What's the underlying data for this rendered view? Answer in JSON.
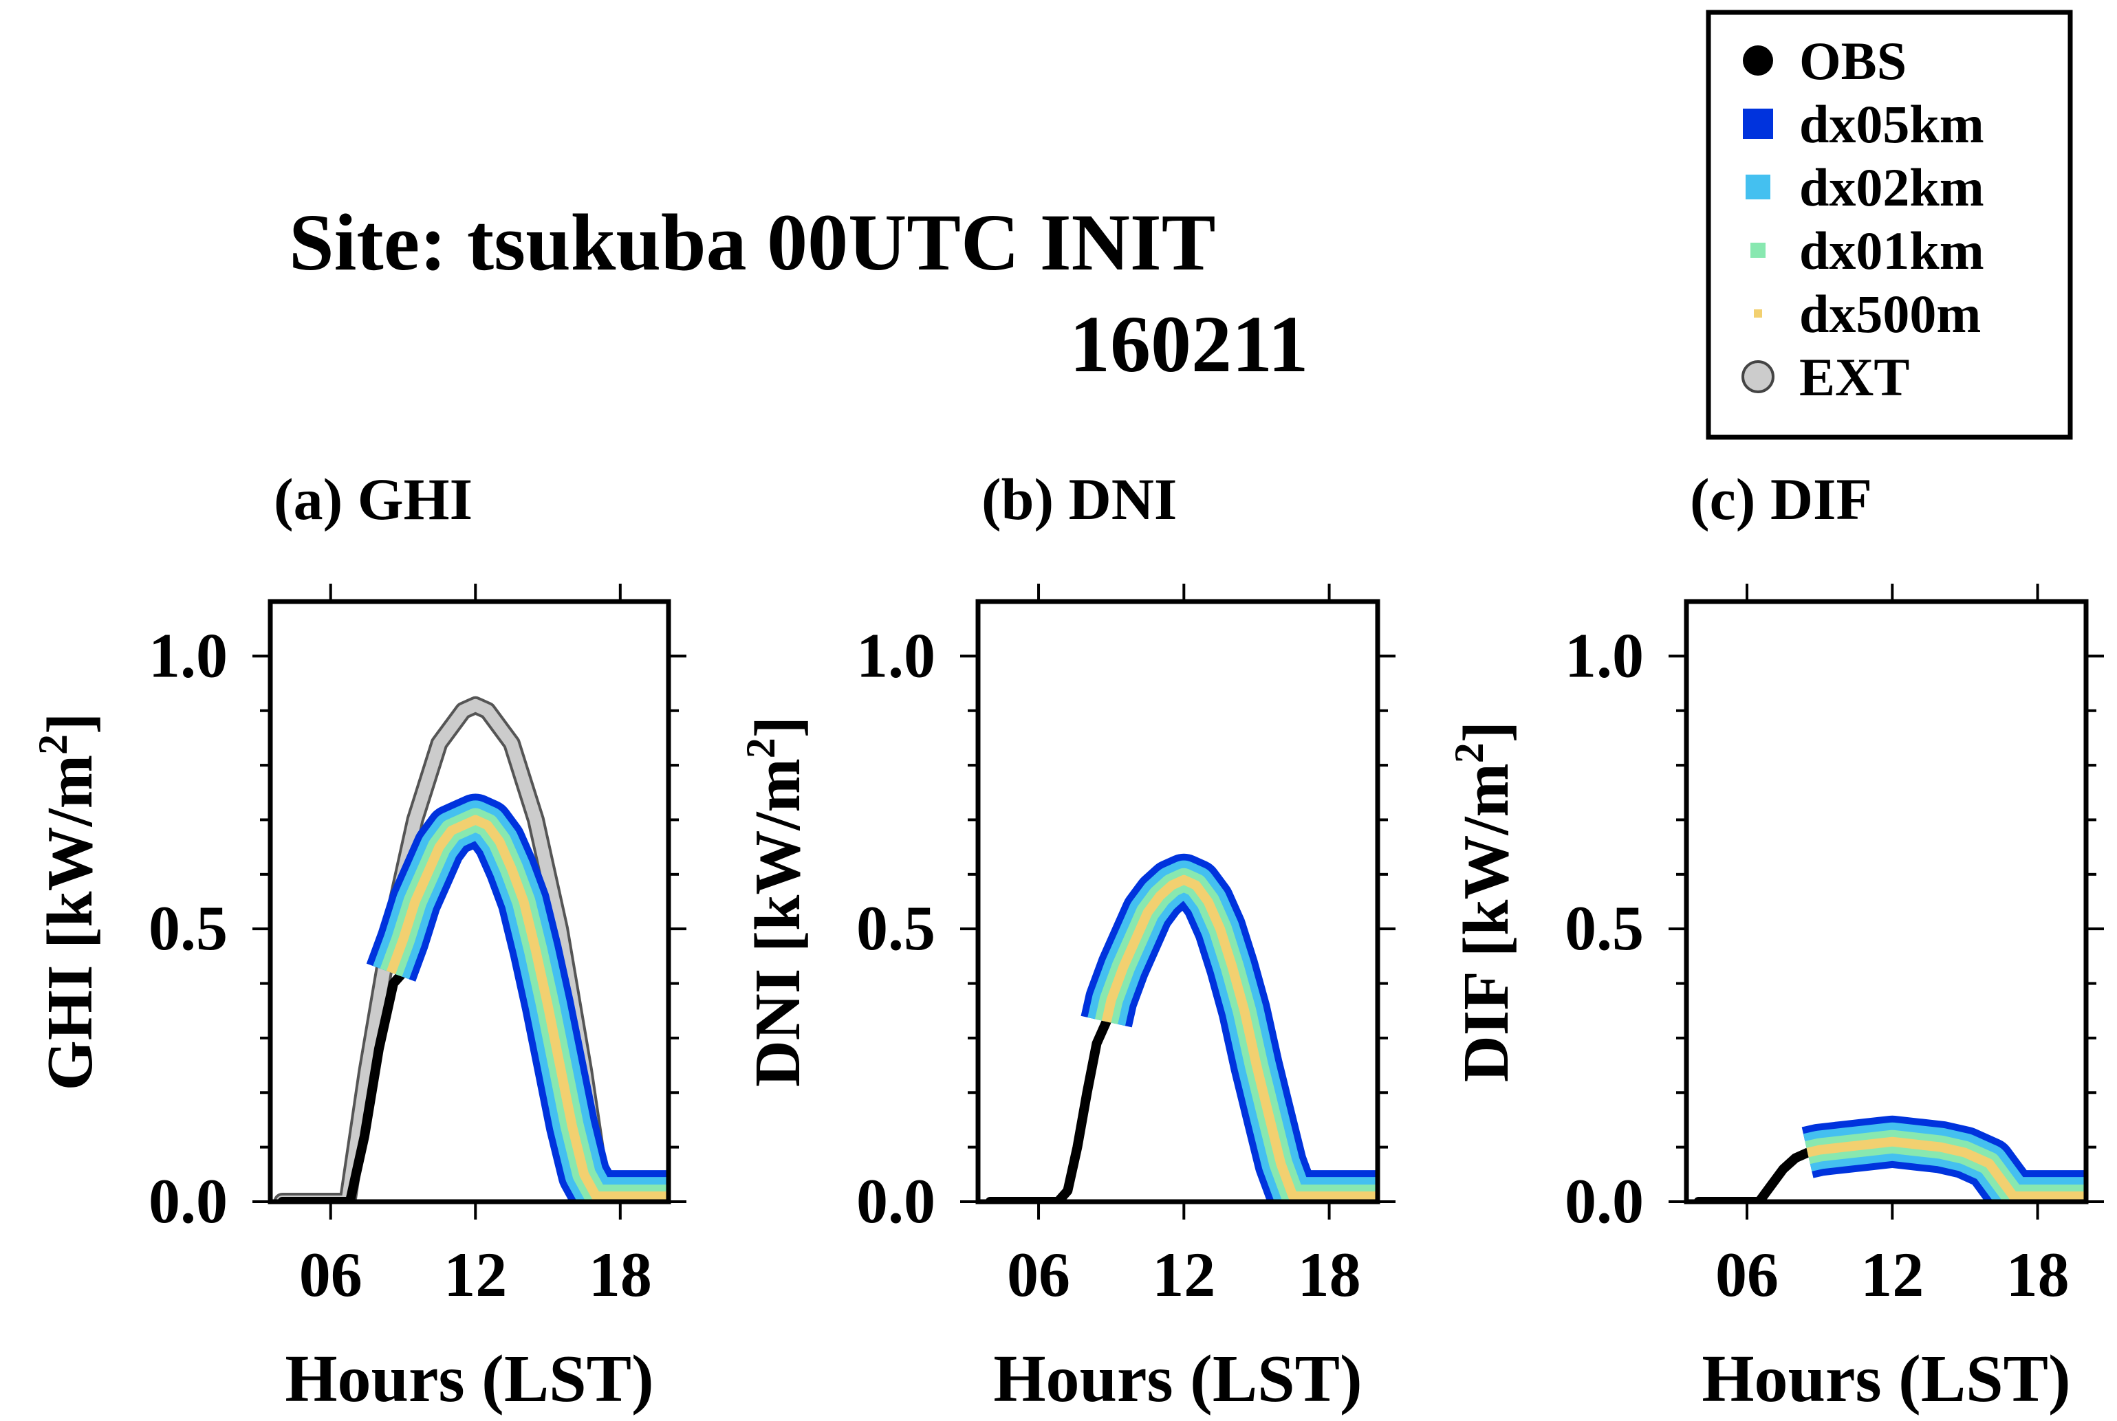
{
  "title": "Site: tsukuba 00UTC INIT",
  "subtitle": "160211",
  "legend": {
    "entries": [
      {
        "key": "obs",
        "label": "OBS",
        "color": "#000000",
        "marker": "circle"
      },
      {
        "key": "dx05km",
        "label": "dx05km",
        "color": "#0033dd",
        "marker": "square"
      },
      {
        "key": "dx02km",
        "label": "dx02km",
        "color": "#44c0f0",
        "marker": "square"
      },
      {
        "key": "dx01km",
        "label": "dx01km",
        "color": "#88e8b0",
        "marker": "square"
      },
      {
        "key": "dx500m",
        "label": "dx500m",
        "color": "#f2d070",
        "marker": "square"
      },
      {
        "key": "ext",
        "label": "EXT",
        "color": "#cccccc",
        "marker": "open-circle"
      }
    ]
  },
  "chart_data": [
    {
      "type": "line",
      "panel_title": "(a) GHI",
      "xlabel": "Hours (LST)",
      "ylabel_main": "GHI [kW/m",
      "ylabel_sup": "2",
      "ylabel_close": "]",
      "xlim": [
        3.5,
        20
      ],
      "ylim": [
        0,
        1.1
      ],
      "xticks": [
        "06",
        "12",
        "18"
      ],
      "yticks": [
        "0.0",
        "0.5",
        "1.0"
      ],
      "series": [
        {
          "name": "EXT",
          "x": [
            4,
            6.7,
            7.5,
            8.5,
            9.5,
            10.5,
            11.5,
            12,
            12.5,
            13.5,
            14.5,
            15.5,
            16.5,
            17.3,
            18,
            20
          ],
          "values": [
            0,
            0,
            0.24,
            0.5,
            0.7,
            0.84,
            0.9,
            0.91,
            0.9,
            0.84,
            0.7,
            0.5,
            0.24,
            0,
            0,
            0
          ]
        },
        {
          "name": "OBS",
          "x": [
            4,
            6.8,
            7.4,
            8.0,
            8.6,
            9.0
          ],
          "values": [
            0,
            0,
            0.12,
            0.28,
            0.4,
            0.42
          ]
        },
        {
          "name": "dx05km",
          "x": [
            8.5,
            9,
            9.5,
            10,
            10.5,
            11,
            11.5,
            12,
            12.5,
            13,
            13.5,
            14,
            14.5,
            15,
            15.5,
            16,
            16.5,
            17,
            17.5,
            18,
            19,
            20
          ],
          "values": [
            0.42,
            0.48,
            0.55,
            0.6,
            0.65,
            0.68,
            0.69,
            0.7,
            0.69,
            0.66,
            0.61,
            0.55,
            0.46,
            0.36,
            0.25,
            0.14,
            0.05,
            0.01,
            0.01,
            0.01,
            0.01,
            0.01
          ]
        },
        {
          "name": "dx02km",
          "x": [
            8.5,
            9,
            9.5,
            10,
            10.5,
            11,
            11.5,
            12,
            12.5,
            13,
            13.5,
            14,
            14.5,
            15,
            15.5,
            16,
            16.5,
            17,
            17.5,
            18,
            19,
            20
          ],
          "values": [
            0.42,
            0.48,
            0.55,
            0.6,
            0.65,
            0.68,
            0.69,
            0.7,
            0.69,
            0.66,
            0.61,
            0.55,
            0.46,
            0.36,
            0.25,
            0.14,
            0.05,
            0.01,
            0.01,
            0.01,
            0.01,
            0.01
          ]
        },
        {
          "name": "dx01km",
          "x": [
            8.5,
            9,
            9.5,
            10,
            10.5,
            11,
            11.5,
            12,
            12.5,
            13,
            13.5,
            14,
            14.5,
            15,
            15.5,
            16,
            16.5,
            17,
            17.5,
            18,
            19,
            20
          ],
          "values": [
            0.42,
            0.48,
            0.55,
            0.6,
            0.65,
            0.68,
            0.69,
            0.7,
            0.69,
            0.66,
            0.61,
            0.55,
            0.46,
            0.36,
            0.25,
            0.14,
            0.05,
            0.01,
            0.01,
            0.01,
            0.01,
            0.01
          ]
        },
        {
          "name": "dx500m",
          "x": [
            8.5,
            9,
            9.5,
            10,
            10.5,
            11,
            11.5,
            12,
            12.5,
            13,
            13.5,
            14,
            14.5,
            15,
            15.5,
            16,
            16.5,
            17,
            17.5,
            18,
            19,
            20
          ],
          "values": [
            0.42,
            0.48,
            0.55,
            0.6,
            0.65,
            0.68,
            0.69,
            0.7,
            0.69,
            0.66,
            0.61,
            0.55,
            0.46,
            0.36,
            0.25,
            0.14,
            0.05,
            0.01,
            0.01,
            0.01,
            0.01,
            0.01
          ]
        }
      ]
    },
    {
      "type": "line",
      "panel_title": "(b) DNI",
      "xlabel": "Hours (LST)",
      "ylabel_main": "DNI [kW/m",
      "ylabel_sup": "2",
      "ylabel_close": "]",
      "xlim": [
        3.5,
        20
      ],
      "ylim": [
        0,
        1.1
      ],
      "xticks": [
        "06",
        "12",
        "18"
      ],
      "yticks": [
        "0.0",
        "0.5",
        "1.0"
      ],
      "series": [
        {
          "name": "OBS",
          "x": [
            4,
            6.8,
            7.2,
            7.6,
            8.0,
            8.4,
            8.8
          ],
          "values": [
            0,
            0,
            0.02,
            0.1,
            0.2,
            0.29,
            0.33
          ]
        },
        {
          "name": "dx05km",
          "x": [
            8.8,
            9,
            9.5,
            10,
            10.5,
            11,
            11.5,
            12,
            12.5,
            13,
            13.5,
            14,
            14.5,
            15,
            15.5,
            16,
            16.5,
            17,
            17.5,
            18,
            19,
            20
          ],
          "values": [
            0.33,
            0.37,
            0.43,
            0.48,
            0.53,
            0.56,
            0.58,
            0.59,
            0.58,
            0.55,
            0.5,
            0.43,
            0.35,
            0.25,
            0.16,
            0.07,
            0.01,
            0.01,
            0.01,
            0.01,
            0.01,
            0.01
          ]
        },
        {
          "name": "dx02km",
          "x": [
            8.8,
            9,
            9.5,
            10,
            10.5,
            11,
            11.5,
            12,
            12.5,
            13,
            13.5,
            14,
            14.5,
            15,
            15.5,
            16,
            16.5,
            17,
            17.5,
            18,
            19,
            20
          ],
          "values": [
            0.33,
            0.37,
            0.43,
            0.48,
            0.53,
            0.56,
            0.58,
            0.59,
            0.58,
            0.55,
            0.5,
            0.43,
            0.35,
            0.25,
            0.16,
            0.07,
            0.01,
            0.01,
            0.01,
            0.01,
            0.01,
            0.01
          ]
        },
        {
          "name": "dx01km",
          "x": [
            8.8,
            9,
            9.5,
            10,
            10.5,
            11,
            11.5,
            12,
            12.5,
            13,
            13.5,
            14,
            14.5,
            15,
            15.5,
            16,
            16.5,
            17,
            17.5,
            18,
            19,
            20
          ],
          "values": [
            0.33,
            0.37,
            0.43,
            0.48,
            0.53,
            0.56,
            0.58,
            0.59,
            0.58,
            0.55,
            0.5,
            0.43,
            0.35,
            0.25,
            0.16,
            0.07,
            0.01,
            0.01,
            0.01,
            0.01,
            0.01,
            0.01
          ]
        },
        {
          "name": "dx500m",
          "x": [
            8.8,
            9,
            9.5,
            10,
            10.5,
            11,
            11.5,
            12,
            12.5,
            13,
            13.5,
            14,
            14.5,
            15,
            15.5,
            16,
            16.5,
            17,
            17.5,
            18,
            19,
            20
          ],
          "values": [
            0.33,
            0.37,
            0.43,
            0.48,
            0.53,
            0.56,
            0.58,
            0.59,
            0.58,
            0.55,
            0.5,
            0.43,
            0.35,
            0.25,
            0.16,
            0.07,
            0.01,
            0.01,
            0.01,
            0.01,
            0.01,
            0.01
          ]
        }
      ]
    },
    {
      "type": "line",
      "panel_title": "(c) DIF",
      "xlabel": "Hours (LST)",
      "ylabel_main": "DIF [kW/m",
      "ylabel_sup": "2",
      "ylabel_close": "]",
      "xlim": [
        3.5,
        20
      ],
      "ylim": [
        0,
        1.1
      ],
      "xticks": [
        "06",
        "12",
        "18"
      ],
      "yticks": [
        "0.0",
        "0.5",
        "1.0"
      ],
      "series": [
        {
          "name": "OBS",
          "x": [
            4,
            6.5,
            7.0,
            7.5,
            8.0,
            8.5
          ],
          "values": [
            0,
            0,
            0.03,
            0.06,
            0.08,
            0.09
          ]
        },
        {
          "name": "dx05km",
          "x": [
            8.5,
            9,
            10,
            11,
            12,
            13,
            14,
            15,
            16,
            16.5,
            17,
            17.5,
            18,
            19,
            20
          ],
          "values": [
            0.09,
            0.095,
            0.1,
            0.105,
            0.11,
            0.105,
            0.1,
            0.09,
            0.07,
            0.04,
            0.01,
            0.01,
            0.01,
            0.01,
            0.01
          ]
        },
        {
          "name": "dx02km",
          "x": [
            8.5,
            9,
            10,
            11,
            12,
            13,
            14,
            15,
            16,
            16.5,
            17,
            17.5,
            18,
            19,
            20
          ],
          "values": [
            0.09,
            0.095,
            0.1,
            0.105,
            0.11,
            0.105,
            0.1,
            0.09,
            0.07,
            0.04,
            0.01,
            0.01,
            0.01,
            0.01,
            0.01
          ]
        },
        {
          "name": "dx01km",
          "x": [
            8.5,
            9,
            10,
            11,
            12,
            13,
            14,
            15,
            16,
            16.5,
            17,
            17.5,
            18,
            19,
            20
          ],
          "values": [
            0.09,
            0.095,
            0.1,
            0.105,
            0.11,
            0.105,
            0.1,
            0.09,
            0.07,
            0.04,
            0.01,
            0.01,
            0.01,
            0.01,
            0.01
          ]
        },
        {
          "name": "dx500m",
          "x": [
            8.5,
            9,
            10,
            11,
            12,
            13,
            14,
            15,
            16,
            16.5,
            17,
            17.5,
            18,
            19,
            20
          ],
          "values": [
            0.09,
            0.095,
            0.1,
            0.105,
            0.11,
            0.105,
            0.1,
            0.09,
            0.07,
            0.04,
            0.01,
            0.01,
            0.01,
            0.01,
            0.01
          ]
        }
      ]
    }
  ]
}
